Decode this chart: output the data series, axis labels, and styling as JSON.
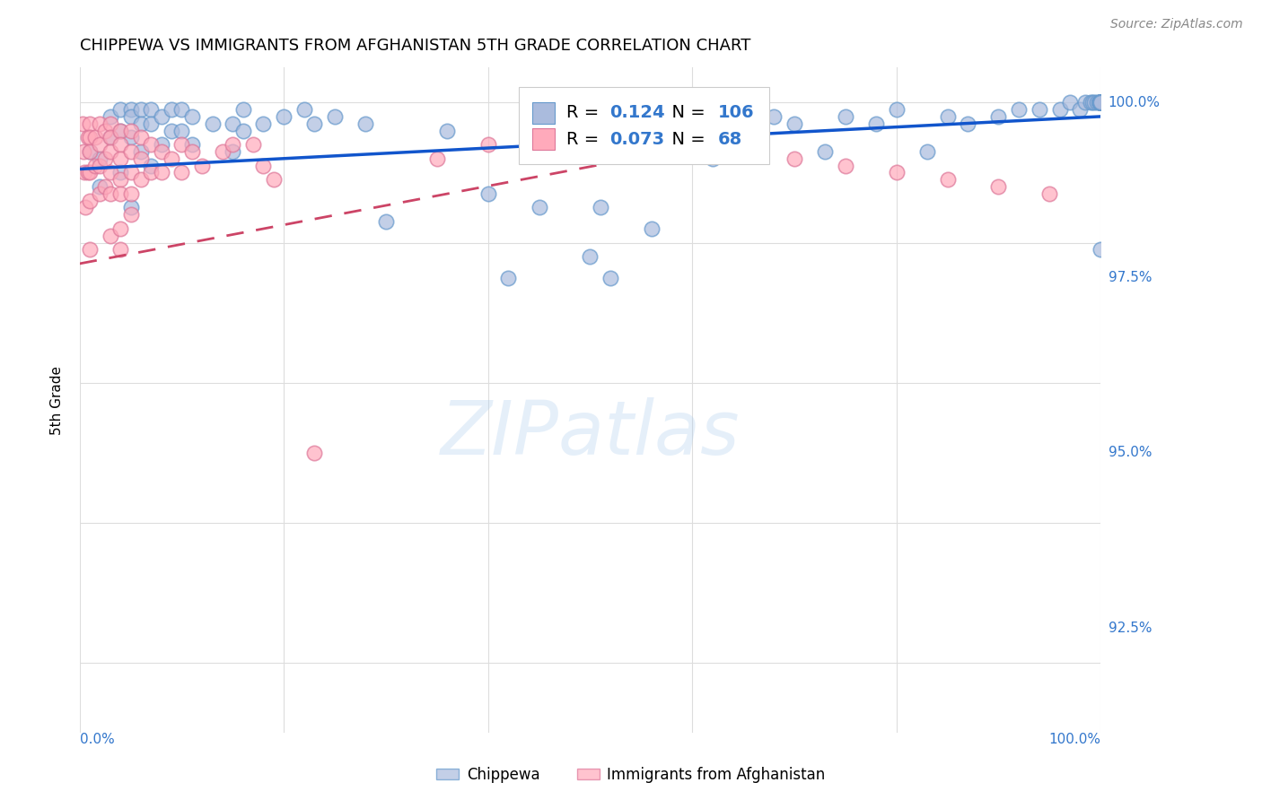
{
  "title": "CHIPPEWA VS IMMIGRANTS FROM AFGHANISTAN 5TH GRADE CORRELATION CHART",
  "source": "Source: ZipAtlas.com",
  "ylabel": "5th Grade",
  "legend_label1": "Chippewa",
  "legend_label2": "Immigrants from Afghanistan",
  "R1": 0.124,
  "N1": 106,
  "R2": 0.073,
  "N2": 68,
  "color_blue": "#AABBDD",
  "color_blue_edge": "#6699CC",
  "color_pink": "#FFAABB",
  "color_pink_edge": "#DD7799",
  "color_trendline_blue": "#1155CC",
  "color_trendline_pink": "#CC4466",
  "watermark": "ZIPatlas",
  "yaxis_labels": [
    "100.0%",
    "97.5%",
    "95.0%",
    "92.5%"
  ],
  "yaxis_values": [
    1.0,
    0.975,
    0.95,
    0.925
  ],
  "blue_x": [
    0.01,
    0.02,
    0.02,
    0.03,
    0.03,
    0.04,
    0.04,
    0.04,
    0.05,
    0.05,
    0.05,
    0.05,
    0.06,
    0.06,
    0.06,
    0.07,
    0.07,
    0.07,
    0.08,
    0.08,
    0.09,
    0.09,
    0.1,
    0.1,
    0.11,
    0.11,
    0.13,
    0.15,
    0.15,
    0.16,
    0.16,
    0.18,
    0.2,
    0.22,
    0.23,
    0.25,
    0.28,
    0.3,
    0.36,
    0.4,
    0.42,
    0.45,
    0.5,
    0.51,
    0.52,
    0.56,
    0.6,
    0.62,
    0.65,
    0.68,
    0.7,
    0.73,
    0.75,
    0.78,
    0.8,
    0.83,
    0.85,
    0.87,
    0.9,
    0.92,
    0.94,
    0.96,
    0.97,
    0.98,
    0.985,
    0.99,
    0.992,
    0.994,
    0.996,
    0.998,
    1.0,
    1.0,
    1.0,
    1.0,
    1.0,
    1.0,
    1.0,
    1.0,
    1.0,
    1.0,
    1.0,
    1.0,
    1.0,
    1.0,
    1.0,
    1.0,
    1.0,
    1.0,
    1.0,
    1.0,
    1.0,
    1.0,
    1.0,
    1.0,
    1.0,
    1.0,
    1.0,
    1.0,
    1.0,
    1.0,
    1.0,
    1.0,
    1.0,
    1.0,
    1.0,
    1.0
  ],
  "blue_y": [
    0.993,
    0.992,
    0.988,
    0.998,
    0.995,
    0.999,
    0.996,
    0.99,
    0.999,
    0.998,
    0.995,
    0.985,
    0.999,
    0.997,
    0.993,
    0.999,
    0.997,
    0.991,
    0.998,
    0.994,
    0.999,
    0.996,
    0.999,
    0.996,
    0.998,
    0.994,
    0.997,
    0.997,
    0.993,
    0.999,
    0.996,
    0.997,
    0.998,
    0.999,
    0.997,
    0.998,
    0.997,
    0.983,
    0.996,
    0.987,
    0.975,
    0.985,
    0.978,
    0.985,
    0.975,
    0.982,
    0.998,
    0.992,
    0.993,
    0.998,
    0.997,
    0.993,
    0.998,
    0.997,
    0.999,
    0.993,
    0.998,
    0.997,
    0.998,
    0.999,
    0.999,
    0.999,
    1.0,
    0.999,
    1.0,
    1.0,
    1.0,
    1.0,
    1.0,
    1.0,
    0.979,
    1.0,
    1.0,
    1.0,
    1.0,
    1.0,
    1.0,
    1.0,
    1.0,
    1.0,
    1.0,
    1.0,
    1.0,
    1.0,
    1.0,
    1.0,
    1.0,
    1.0,
    1.0,
    1.0,
    1.0,
    1.0,
    1.0,
    1.0,
    1.0,
    1.0,
    1.0,
    1.0,
    1.0,
    1.0,
    1.0,
    1.0,
    1.0,
    1.0,
    1.0,
    1.0
  ],
  "pink_x": [
    0.003,
    0.004,
    0.005,
    0.006,
    0.008,
    0.008,
    0.01,
    0.01,
    0.01,
    0.01,
    0.01,
    0.01,
    0.015,
    0.015,
    0.02,
    0.02,
    0.02,
    0.02,
    0.025,
    0.025,
    0.025,
    0.03,
    0.03,
    0.03,
    0.03,
    0.03,
    0.03,
    0.04,
    0.04,
    0.04,
    0.04,
    0.04,
    0.04,
    0.04,
    0.05,
    0.05,
    0.05,
    0.05,
    0.05,
    0.06,
    0.06,
    0.06,
    0.07,
    0.07,
    0.08,
    0.08,
    0.09,
    0.1,
    0.1,
    0.11,
    0.12,
    0.14,
    0.15,
    0.17,
    0.18,
    0.19,
    0.23,
    0.35,
    0.4,
    0.5,
    0.6,
    0.65,
    0.7,
    0.75,
    0.8,
    0.85,
    0.9,
    0.95
  ],
  "pink_y": [
    0.997,
    0.993,
    0.99,
    0.985,
    0.995,
    0.99,
    0.997,
    0.995,
    0.993,
    0.99,
    0.986,
    0.979,
    0.995,
    0.991,
    0.997,
    0.994,
    0.991,
    0.987,
    0.996,
    0.992,
    0.988,
    0.997,
    0.995,
    0.993,
    0.99,
    0.987,
    0.981,
    0.996,
    0.994,
    0.992,
    0.989,
    0.987,
    0.982,
    0.979,
    0.996,
    0.993,
    0.99,
    0.987,
    0.984,
    0.995,
    0.992,
    0.989,
    0.994,
    0.99,
    0.993,
    0.99,
    0.992,
    0.994,
    0.99,
    0.993,
    0.991,
    0.993,
    0.994,
    0.994,
    0.991,
    0.989,
    0.95,
    0.992,
    0.994,
    0.995,
    0.994,
    0.993,
    0.992,
    0.991,
    0.99,
    0.989,
    0.988,
    0.987
  ],
  "xlim": [
    0.0,
    1.0
  ],
  "ylim": [
    0.91,
    1.005
  ],
  "background_color": "#ffffff",
  "grid_color": "#dddddd",
  "title_fontsize": 13,
  "source_fontsize": 10,
  "axis_color": "#3377CC",
  "blue_trendline_y0": 0.9905,
  "blue_trendline_y1": 0.998,
  "pink_trendline_x0": 0.0,
  "pink_trendline_x1": 0.65,
  "pink_trendline_y0": 0.977,
  "pink_trendline_y1": 0.995
}
